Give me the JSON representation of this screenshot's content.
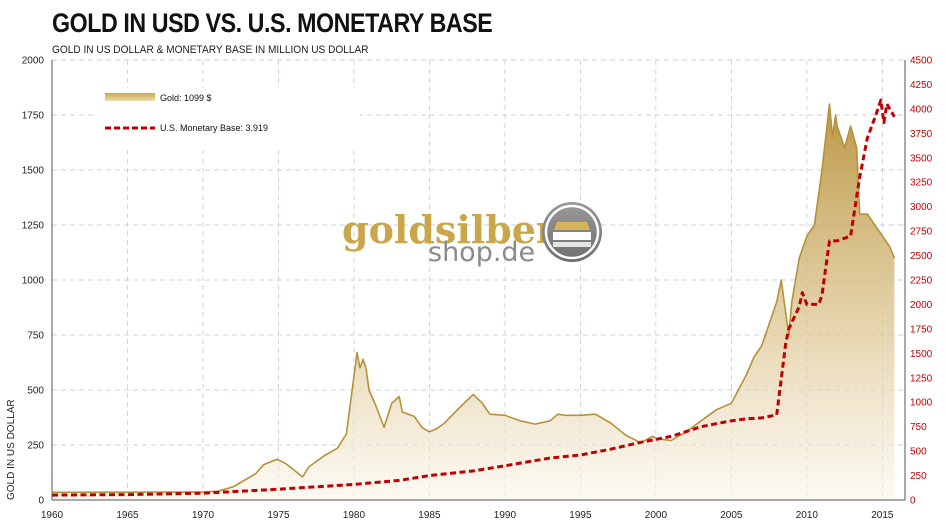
{
  "title": "GOLD IN USD VS. U.S. MONETARY BASE",
  "subtitle": "GOLD IN US DOLLAR & MONETARY BASE IN MILLION US DOLLAR",
  "logo": {
    "word1": "goldsilber",
    "word2": "shop.de",
    "icon": "gold-bar-coin-icon"
  },
  "colors": {
    "gold": "#b5923a",
    "monetary_base": "#c00000",
    "grid": "#b8c4d6",
    "right_axis": "#c00000"
  },
  "chart_data": {
    "type": "line",
    "ylabel": "GOLD IN US DOLLAR",
    "x_ticks": [
      1960,
      1965,
      1970,
      1975,
      1980,
      1985,
      1990,
      1995,
      2000,
      2005,
      2010,
      2015
    ],
    "xlim": [
      1960,
      2016.5
    ],
    "ylim_left": [
      0,
      2000
    ],
    "ylim_right": [
      0,
      4500
    ],
    "y_ticks_left": [
      0,
      250,
      500,
      750,
      1000,
      1250,
      1500,
      1750,
      2000
    ],
    "y_ticks_right": [
      0,
      250,
      500,
      750,
      1000,
      1250,
      1500,
      1750,
      2000,
      2250,
      2500,
      2750,
      3000,
      3250,
      3500,
      3750,
      4000,
      4250,
      4500
    ],
    "grid": true,
    "legend_position": "top-left",
    "series": [
      {
        "name": "Gold",
        "legend_label": "Gold: 1099 $",
        "axis": "left",
        "style": "area",
        "x": [
          1960,
          1968,
          1970,
          1971,
          1972,
          1973,
          1973.5,
          1974,
          1974.9,
          1975.5,
          1976.6,
          1977,
          1978,
          1978.9,
          1979.5,
          1980.0,
          1980.2,
          1980.4,
          1980.6,
          1980.8,
          1981,
          1981.5,
          1982,
          1982.5,
          1983.0,
          1983.2,
          1984,
          1984.5,
          1985.0,
          1985.5,
          1986,
          1987,
          1987.9,
          1988.5,
          1989,
          1990,
          1991,
          1992,
          1993,
          1993.5,
          1994,
          1995,
          1996,
          1997,
          1998,
          1999,
          1999.8,
          2000,
          2001,
          2002,
          2003,
          2004,
          2005,
          2006,
          2006.5,
          2007,
          2008,
          2008.3,
          2008.8,
          2009,
          2009.5,
          2010,
          2010.5,
          2011,
          2011.5,
          2011.7,
          2011.9,
          2012,
          2012.5,
          2012.9,
          2013.3,
          2013.5,
          2014,
          2014.5,
          2015,
          2015.5,
          2015.8
        ],
        "y": [
          35,
          36,
          36,
          40,
          60,
          100,
          120,
          160,
          185,
          165,
          105,
          150,
          200,
          235,
          300,
          560,
          670,
          600,
          640,
          600,
          500,
          420,
          330,
          440,
          470,
          400,
          380,
          330,
          310,
          325,
          350,
          420,
          480,
          440,
          390,
          385,
          360,
          345,
          360,
          390,
          385,
          385,
          390,
          350,
          295,
          260,
          290,
          280,
          270,
          310,
          360,
          410,
          440,
          570,
          650,
          700,
          900,
          1000,
          750,
          900,
          1100,
          1200,
          1250,
          1500,
          1800,
          1650,
          1750,
          1700,
          1600,
          1700,
          1600,
          1300,
          1300,
          1250,
          1200,
          1150,
          1099
        ]
      },
      {
        "name": "U.S. Monetary Base",
        "legend_label": "U.S. Monetary Base:  3.919",
        "axis": "right",
        "style": "dashed",
        "x": [
          1960,
          1965,
          1970,
          1975,
          1980,
          1983,
          1985,
          1988,
          1990,
          1993,
          1995,
          1997,
          1999,
          2000,
          2001,
          2002,
          2003,
          2004,
          2005,
          2006,
          2007,
          2008.0,
          2008.6,
          2008.8,
          2009.5,
          2009.7,
          2010,
          2010.8,
          2011.0,
          2011.5,
          2012,
          2012.9,
          2013.5,
          2014.0,
          2014.6,
          2014.9,
          2015.1,
          2015.3,
          2015.8
        ],
        "y": [
          50,
          55,
          70,
          110,
          160,
          200,
          250,
          300,
          350,
          430,
          460,
          520,
          590,
          620,
          650,
          700,
          750,
          780,
          810,
          830,
          840,
          870,
          1600,
          1750,
          1980,
          2120,
          2000,
          2000,
          2100,
          2650,
          2650,
          2700,
          3300,
          3700,
          3950,
          4090,
          3860,
          4050,
          3919
        ]
      }
    ]
  }
}
